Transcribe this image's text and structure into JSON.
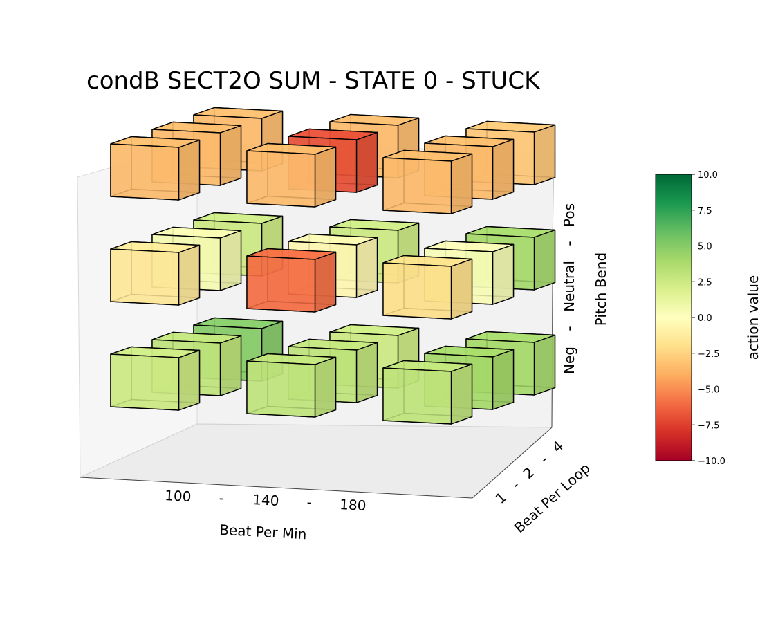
{
  "chart_data": {
    "type": "3d-bar",
    "title": "condB SECT2O SUM - STATE 0 - STUCK",
    "x_axis": {
      "label": "Beat Per Min",
      "ticks": [
        "100",
        "-",
        "140",
        "-",
        "180"
      ]
    },
    "y_axis": {
      "label": "Beat Per Loop",
      "ticks": [
        "1",
        "-",
        "2",
        "-",
        "4"
      ]
    },
    "z_axis": {
      "label": "Pitch Bend",
      "ticks": [
        "Neg",
        "-",
        "Neutral",
        "-",
        "Pos"
      ]
    },
    "colorbar": {
      "label": "action value",
      "range": [
        -10,
        10
      ],
      "ticks": [
        "10.0",
        "7.5",
        "5.0",
        "2.5",
        "0.0",
        "−2.5",
        "−5.0",
        "−7.5",
        "−10.0"
      ],
      "colormap": "RdYlGn"
    },
    "cells": [
      {
        "bpm": "100",
        "bpl": "1",
        "pitch": "Neg",
        "value": 2.5
      },
      {
        "bpm": "100",
        "bpl": "2",
        "pitch": "Neg",
        "value": 3.0
      },
      {
        "bpm": "100",
        "bpl": "4",
        "pitch": "Neg",
        "value": 5.0
      },
      {
        "bpm": "140",
        "bpl": "1",
        "pitch": "Neg",
        "value": 3.0
      },
      {
        "bpm": "140",
        "bpl": "2",
        "pitch": "Neg",
        "value": 3.0
      },
      {
        "bpm": "140",
        "bpl": "4",
        "pitch": "Neg",
        "value": 2.5
      },
      {
        "bpm": "180",
        "bpl": "1",
        "pitch": "Neg",
        "value": 3.0
      },
      {
        "bpm": "180",
        "bpl": "2",
        "pitch": "Neg",
        "value": 4.0
      },
      {
        "bpm": "180",
        "bpl": "4",
        "pitch": "Neg",
        "value": 4.0
      },
      {
        "bpm": "100",
        "bpl": "1",
        "pitch": "Neutral",
        "value": -1.5
      },
      {
        "bpm": "100",
        "bpl": "2",
        "pitch": "Neutral",
        "value": 0.5
      },
      {
        "bpm": "100",
        "bpl": "4",
        "pitch": "Neutral",
        "value": 2.5
      },
      {
        "bpm": "140",
        "bpl": "1",
        "pitch": "Neutral",
        "value": -6.0
      },
      {
        "bpm": "140",
        "bpl": "2",
        "pitch": "Neutral",
        "value": -0.5
      },
      {
        "bpm": "140",
        "bpl": "4",
        "pitch": "Neutral",
        "value": 2.5
      },
      {
        "bpm": "180",
        "bpl": "1",
        "pitch": "Neutral",
        "value": -2.0
      },
      {
        "bpm": "180",
        "bpl": "2",
        "pitch": "Neutral",
        "value": 0.3
      },
      {
        "bpm": "180",
        "bpl": "4",
        "pitch": "Neutral",
        "value": 4.0
      },
      {
        "bpm": "100",
        "bpl": "1",
        "pitch": "Pos",
        "value": -3.5
      },
      {
        "bpm": "100",
        "bpl": "2",
        "pitch": "Pos",
        "value": -3.5
      },
      {
        "bpm": "100",
        "bpl": "4",
        "pitch": "Pos",
        "value": -3.5
      },
      {
        "bpm": "140",
        "bpl": "1",
        "pitch": "Pos",
        "value": -3.5
      },
      {
        "bpm": "140",
        "bpl": "2",
        "pitch": "Pos",
        "value": -7.0
      },
      {
        "bpm": "140",
        "bpl": "4",
        "pitch": "Pos",
        "value": -3.5
      },
      {
        "bpm": "180",
        "bpl": "1",
        "pitch": "Pos",
        "value": -3.5
      },
      {
        "bpm": "180",
        "bpl": "2",
        "pitch": "Pos",
        "value": -3.5
      },
      {
        "bpm": "180",
        "bpl": "4",
        "pitch": "Pos",
        "value": -3.0
      }
    ]
  }
}
